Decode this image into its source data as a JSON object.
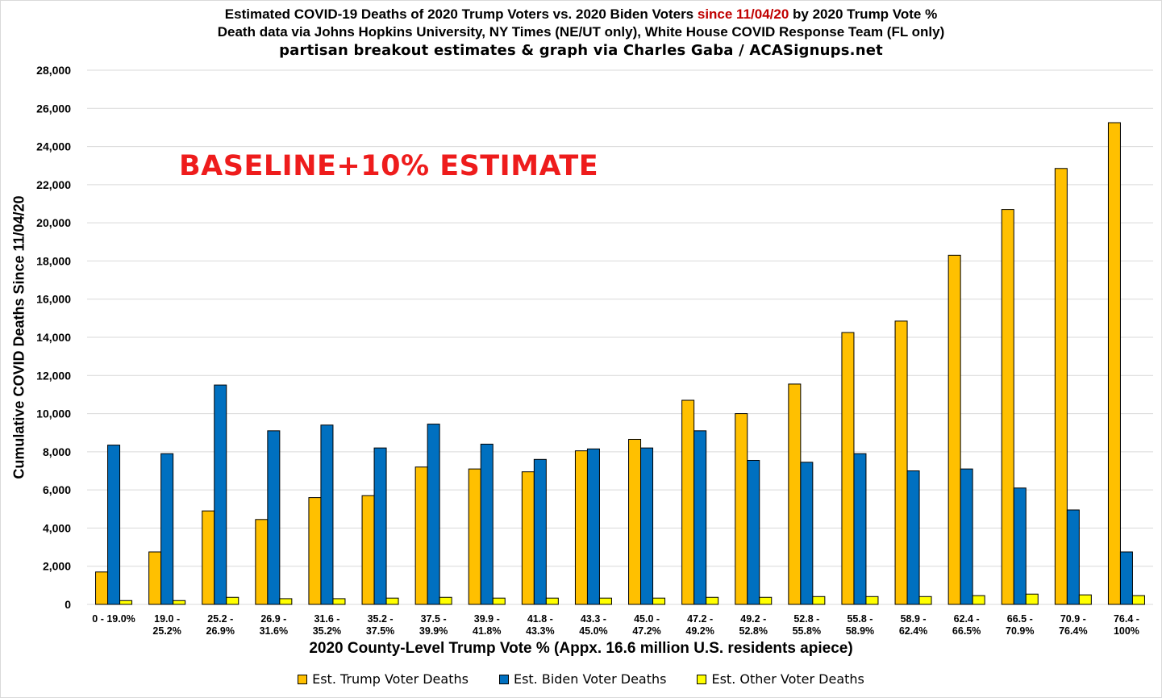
{
  "title_parts": {
    "prefix": "Estimated COVID-19 Deaths of 2020 Trump Voters vs. 2020 Biden Voters ",
    "highlight": "since 11/04/20",
    "suffix": " by 2020 Trump Vote %"
  },
  "subtitle": "Death data via Johns Hopkins University, NY Times (NE/UT only), White House COVID Response Team (FL only)",
  "credit": "partisan breakout estimates & graph via Charles Gaba / ACASignups.net",
  "annotation": "BASELINE+10% ESTIMATE",
  "colors": {
    "trump": "#ffc000",
    "biden": "#0070c0",
    "other": "#ffff00",
    "highlight": "#c00000",
    "annotation": "#ee1c1c"
  },
  "chart_data": {
    "type": "bar",
    "title": "Estimated COVID-19 Deaths of 2020 Trump Voters vs. 2020 Biden Voters since 11/04/20 by 2020 Trump Vote %",
    "xlabel": "2020 County-Level Trump Vote % (Appx. 16.6 million U.S. residents apiece)",
    "ylabel": "Cumulative COVID Deaths Since 11/04/20",
    "ylim": [
      0,
      28000
    ],
    "yticks": [
      "0",
      "2,000",
      "4,000",
      "6,000",
      "8,000",
      "10,000",
      "12,000",
      "14,000",
      "16,000",
      "18,000",
      "20,000",
      "22,000",
      "24,000",
      "26,000",
      "28,000"
    ],
    "grid": true,
    "legend_position": "bottom",
    "categories": [
      [
        "0 - 19.0%"
      ],
      [
        "19.0 -",
        "25.2%"
      ],
      [
        "25.2 -",
        "26.9%"
      ],
      [
        "26.9 -",
        "31.6%"
      ],
      [
        "31.6 -",
        "35.2%"
      ],
      [
        "35.2 -",
        "37.5%"
      ],
      [
        "37.5 -",
        "39.9%"
      ],
      [
        "39.9 -",
        "41.8%"
      ],
      [
        "41.8 -",
        "43.3%"
      ],
      [
        "43.3 -",
        "45.0%"
      ],
      [
        "45.0 -",
        "47.2%"
      ],
      [
        "47.2 -",
        "49.2%"
      ],
      [
        "49.2 -",
        "52.8%"
      ],
      [
        "52.8 -",
        "55.8%"
      ],
      [
        "55.8 -",
        "58.9%"
      ],
      [
        "58.9 -",
        "62.4%"
      ],
      [
        "62.4 -",
        "66.5%"
      ],
      [
        "66.5 -",
        "70.9%"
      ],
      [
        "70.9 -",
        "76.4%"
      ],
      [
        "76.4 -",
        "100%"
      ]
    ],
    "series": [
      {
        "name": "Est. Trump Voter Deaths",
        "color": "#ffc000",
        "values": [
          1700,
          2750,
          4900,
          4450,
          5600,
          5700,
          7200,
          7100,
          6950,
          8050,
          8650,
          10700,
          10000,
          11550,
          14250,
          14850,
          18300,
          20700,
          22850,
          25250
        ]
      },
      {
        "name": "Est. Biden Voter Deaths",
        "color": "#0070c0",
        "values": [
          8350,
          7900,
          11500,
          9100,
          9400,
          8200,
          9450,
          8400,
          7600,
          8150,
          8200,
          9100,
          7550,
          7450,
          7900,
          7000,
          7100,
          6100,
          4950,
          2750
        ]
      },
      {
        "name": "Est. Other Voter Deaths",
        "color": "#ffff00",
        "values": [
          200,
          200,
          370,
          300,
          300,
          330,
          370,
          330,
          330,
          330,
          330,
          370,
          370,
          410,
          410,
          410,
          460,
          540,
          500,
          460
        ]
      }
    ]
  }
}
